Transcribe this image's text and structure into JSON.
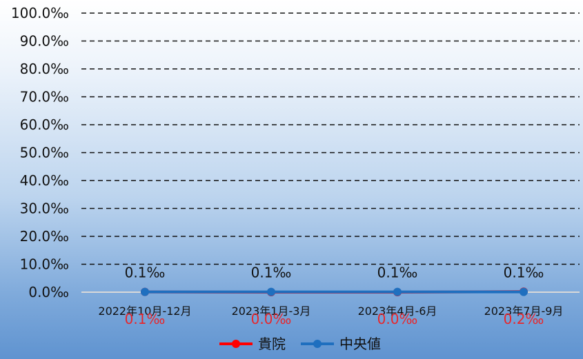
{
  "chart_data": {
    "type": "line",
    "categories": [
      "2022年10月-12月",
      "2023年1月-3月",
      "2023年4月-6月",
      "2023年7月-9月"
    ],
    "series": [
      {
        "name": "貴院",
        "values": [
          0.1,
          0.0,
          0.0,
          0.2
        ],
        "color": "#ff0000",
        "labels": [
          "0.1‰",
          "0.0‰",
          "0.0‰",
          "0.2‰"
        ],
        "label_color": "#e8262b"
      },
      {
        "name": "中央値",
        "values": [
          0.1,
          0.1,
          0.1,
          0.1
        ],
        "color": "#1f6fbf",
        "labels": [
          "0.1‰",
          "0.1‰",
          "0.1‰",
          "0.1‰"
        ],
        "label_color": "#111111"
      }
    ],
    "y_ticks": [
      "0.0‰",
      "10.0‰",
      "20.0‰",
      "30.0‰",
      "40.0‰",
      "50.0‰",
      "60.0‰",
      "70.0‰",
      "80.0‰",
      "90.0‰",
      "100.0‰"
    ],
    "ylim": [
      0,
      100
    ],
    "grid": "dashed horizontal",
    "legend_position": "bottom"
  }
}
